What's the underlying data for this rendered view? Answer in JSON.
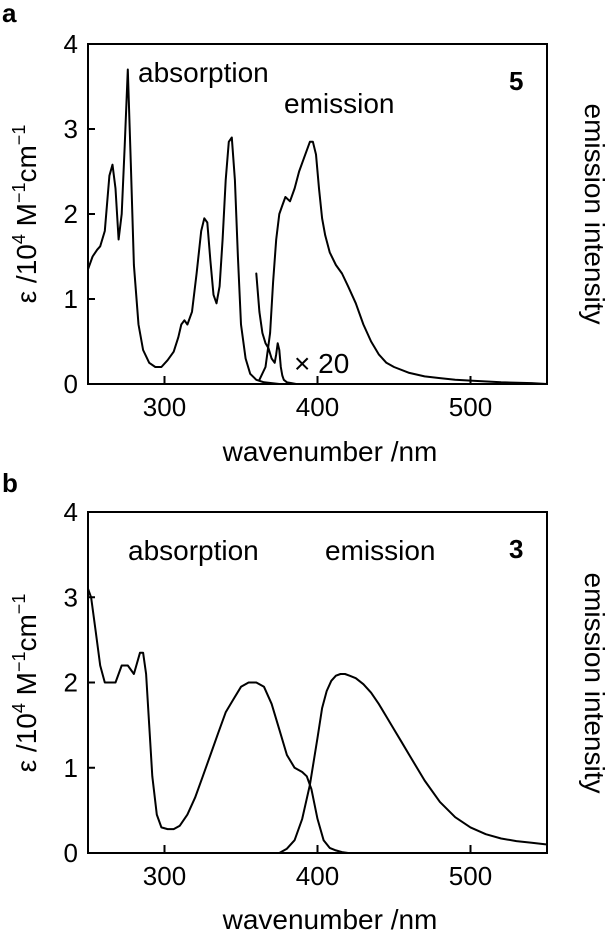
{
  "chart_data": [
    {
      "type": "line",
      "panel_label": "a",
      "compound_label": "5",
      "xlabel": "wavenumber /nm",
      "ylabel_parts": [
        "ε /10",
        "4",
        " M",
        "−1",
        "cm",
        "−1"
      ],
      "y2label": "emission intensity",
      "xlim": [
        250,
        550
      ],
      "ylim": [
        0,
        4
      ],
      "xticks": [
        300,
        400,
        500
      ],
      "yticks": [
        0,
        1,
        2,
        3,
        4
      ],
      "annotations": {
        "absorption": "absorption",
        "emission": "emission",
        "scale": "× 20"
      },
      "series": [
        {
          "name": "absorption",
          "x": [
            250,
            253,
            256,
            258,
            261,
            264,
            266,
            268,
            270,
            272,
            274,
            276,
            278,
            280,
            283,
            286,
            290,
            294,
            298,
            302,
            306,
            309,
            311,
            313,
            315,
            318,
            321,
            324,
            326,
            328,
            330,
            332,
            334,
            336,
            338,
            340,
            342,
            344,
            346,
            348,
            350,
            353,
            356,
            360,
            365,
            370,
            375
          ],
          "y": [
            1.35,
            1.5,
            1.58,
            1.62,
            1.8,
            2.45,
            2.58,
            2.3,
            1.7,
            2.0,
            2.8,
            3.7,
            2.6,
            1.4,
            0.7,
            0.4,
            0.25,
            0.2,
            0.2,
            0.28,
            0.38,
            0.55,
            0.7,
            0.75,
            0.7,
            0.85,
            1.3,
            1.8,
            1.95,
            1.9,
            1.45,
            1.05,
            0.95,
            1.15,
            1.7,
            2.4,
            2.85,
            2.9,
            2.4,
            1.5,
            0.7,
            0.3,
            0.12,
            0.05,
            0.02,
            0.01,
            0.0
          ]
        },
        {
          "name": "emission ×20 (onset)",
          "x": [
            360,
            362,
            364,
            366,
            368,
            370,
            372,
            373,
            374,
            375,
            376,
            377,
            378,
            380,
            383,
            386,
            390
          ],
          "y": [
            1.3,
            0.85,
            0.6,
            0.48,
            0.42,
            0.3,
            0.25,
            0.35,
            0.48,
            0.4,
            0.2,
            0.1,
            0.05,
            0.02,
            0.01,
            0.0,
            0.0
          ]
        },
        {
          "name": "emission",
          "x": [
            362,
            366,
            369,
            371,
            373,
            375,
            377,
            379,
            382,
            385,
            388,
            391,
            393,
            395,
            397,
            399,
            401,
            403,
            405,
            408,
            412,
            416,
            420,
            425,
            430,
            435,
            440,
            445,
            450,
            460,
            470,
            480,
            490,
            500,
            520,
            540,
            550
          ],
          "y": [
            0.05,
            0.2,
            0.6,
            1.2,
            1.7,
            2.0,
            2.1,
            2.2,
            2.15,
            2.3,
            2.5,
            2.65,
            2.75,
            2.85,
            2.85,
            2.7,
            2.3,
            1.95,
            1.75,
            1.55,
            1.4,
            1.3,
            1.15,
            0.95,
            0.7,
            0.5,
            0.35,
            0.25,
            0.2,
            0.13,
            0.09,
            0.07,
            0.05,
            0.04,
            0.02,
            0.01,
            0.0
          ]
        }
      ]
    },
    {
      "type": "line",
      "panel_label": "b",
      "compound_label": "3",
      "xlabel": "wavenumber /nm",
      "ylabel_parts": [
        "ε /10",
        "4",
        " M",
        "−1",
        "cm",
        "−1"
      ],
      "y2label": "emission intensity",
      "xlim": [
        250,
        550
      ],
      "ylim": [
        0,
        4
      ],
      "xticks": [
        300,
        400,
        500
      ],
      "yticks": [
        0,
        1,
        2,
        3,
        4
      ],
      "annotations": {
        "absorption": "absorption",
        "emission": "emission"
      },
      "series": [
        {
          "name": "absorption",
          "x": [
            250,
            252,
            255,
            258,
            261,
            264,
            268,
            272,
            276,
            280,
            284,
            286,
            288,
            290,
            292,
            295,
            298,
            302,
            306,
            310,
            315,
            320,
            325,
            330,
            335,
            340,
            345,
            350,
            355,
            360,
            365,
            370,
            375,
            380,
            385,
            390,
            393,
            396,
            400,
            404,
            408,
            412,
            416,
            420,
            425
          ],
          "y": [
            3.1,
            3.0,
            2.6,
            2.2,
            2.0,
            2.0,
            2.0,
            2.2,
            2.2,
            2.1,
            2.35,
            2.35,
            2.1,
            1.5,
            0.9,
            0.45,
            0.3,
            0.28,
            0.28,
            0.32,
            0.45,
            0.65,
            0.9,
            1.15,
            1.4,
            1.65,
            1.8,
            1.95,
            2.0,
            2.0,
            1.95,
            1.75,
            1.45,
            1.15,
            1.0,
            0.95,
            0.9,
            0.75,
            0.4,
            0.15,
            0.06,
            0.03,
            0.01,
            0.0,
            0.0
          ]
        },
        {
          "name": "emission",
          "x": [
            375,
            380,
            385,
            390,
            395,
            400,
            403,
            406,
            409,
            412,
            415,
            418,
            421,
            425,
            430,
            435,
            440,
            445,
            450,
            455,
            460,
            470,
            480,
            490,
            500,
            510,
            520,
            530,
            540,
            550
          ],
          "y": [
            0.0,
            0.05,
            0.15,
            0.4,
            0.8,
            1.35,
            1.7,
            1.9,
            2.02,
            2.08,
            2.1,
            2.1,
            2.08,
            2.05,
            1.98,
            1.88,
            1.75,
            1.6,
            1.45,
            1.3,
            1.15,
            0.85,
            0.6,
            0.42,
            0.3,
            0.22,
            0.17,
            0.14,
            0.12,
            0.1
          ]
        }
      ]
    }
  ]
}
